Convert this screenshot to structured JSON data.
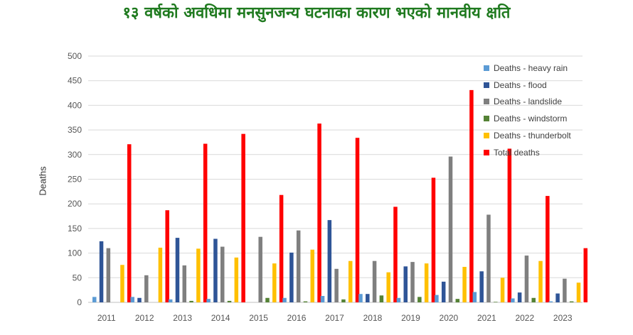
{
  "chart_data": {
    "type": "bar",
    "title": "१३ वर्षको अवधिमा मनसुनजन्य घटनाका कारण भएको मानवीय क्षति",
    "ylabel": "Deaths",
    "xlabel": "",
    "ylim": [
      0,
      500
    ],
    "yticks": [
      0,
      50,
      100,
      150,
      200,
      250,
      300,
      350,
      400,
      450,
      500
    ],
    "grid": true,
    "legend_position": "top-right",
    "categories": [
      "2011",
      "2012",
      "2013",
      "2014",
      "2015",
      "2016",
      "2017",
      "2018",
      "2019",
      "2020",
      "2021",
      "2022",
      "2023"
    ],
    "series": [
      {
        "name": "Deaths - heavy rain",
        "color": "#5b9bd5",
        "values": [
          11,
          11,
          6,
          7,
          0,
          9,
          13,
          17,
          9,
          15,
          21,
          8,
          2
        ]
      },
      {
        "name": "Deaths - flood",
        "color": "#2f5597",
        "values": [
          124,
          9,
          131,
          129,
          0,
          101,
          167,
          17,
          73,
          42,
          63,
          20,
          18
        ]
      },
      {
        "name": "Deaths - landslide",
        "color": "#7f7f7f",
        "values": [
          110,
          55,
          75,
          113,
          133,
          146,
          68,
          84,
          82,
          296,
          178,
          95,
          48
        ]
      },
      {
        "name": "Deaths - windstorm",
        "color": "#548235",
        "values": [
          0,
          0,
          3,
          3,
          9,
          2,
          6,
          14,
          11,
          7,
          1,
          9,
          2
        ]
      },
      {
        "name": "Deaths - thunderbolt",
        "color": "#ffc000",
        "values": [
          76,
          111,
          109,
          91,
          79,
          107,
          84,
          61,
          79,
          72,
          50,
          84,
          40
        ]
      },
      {
        "name": "Total deaths",
        "color": "#ff0000",
        "values": [
          321,
          187,
          322,
          342,
          218,
          363,
          334,
          194,
          253,
          431,
          312,
          216,
          110
        ]
      }
    ]
  }
}
